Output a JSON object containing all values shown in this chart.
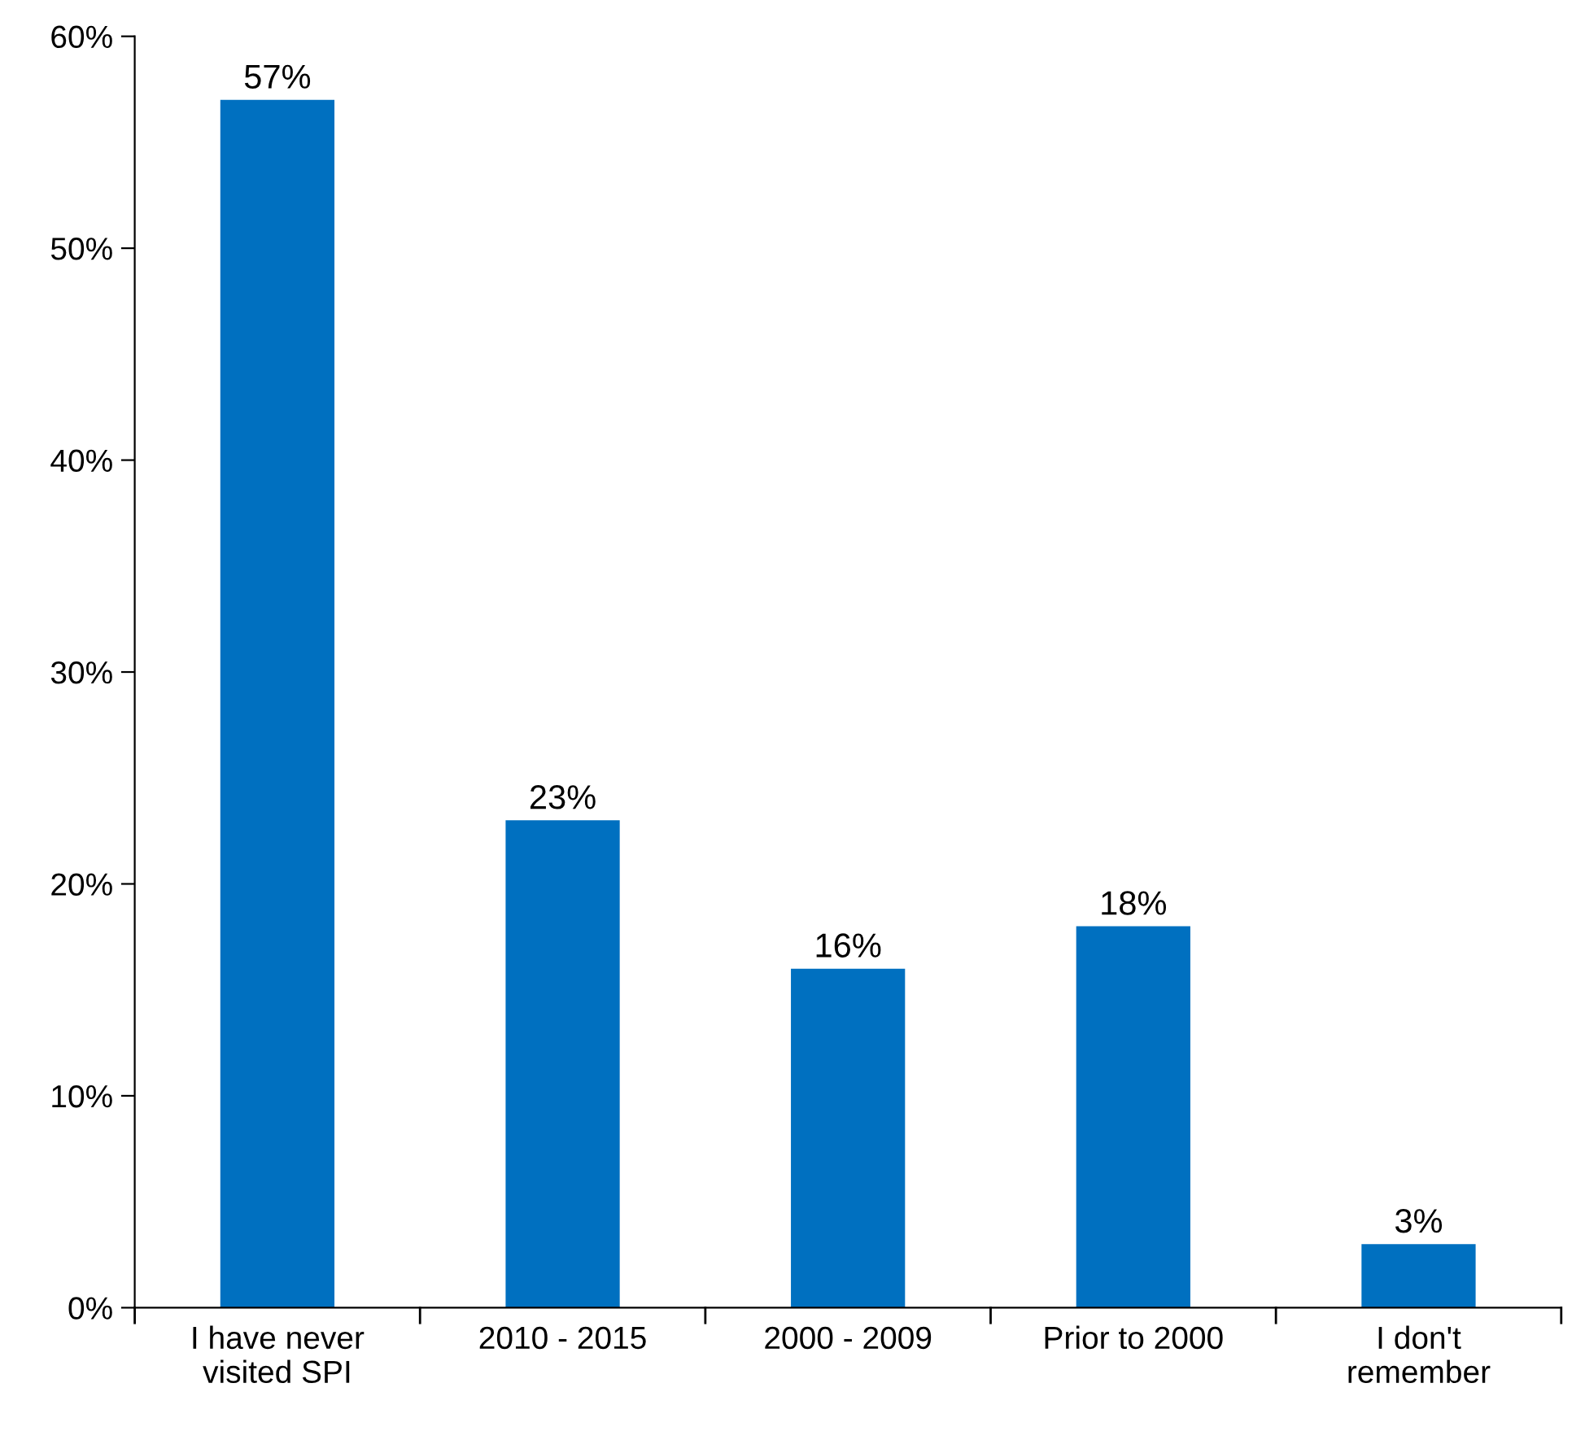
{
  "chart_data": {
    "type": "bar",
    "categories": [
      "I have never\nvisited SPI",
      "2010 - 2015",
      "2000 - 2009",
      "Prior to 2000",
      "I don't\nremember"
    ],
    "values": [
      57,
      23,
      16,
      18,
      3
    ],
    "color": "#0070c0",
    "ylim": [
      0,
      60
    ],
    "yticks": [
      {
        "value": 0,
        "label": "0%"
      },
      {
        "value": 10,
        "label": "10%"
      },
      {
        "value": 20,
        "label": "20%"
      },
      {
        "value": 30,
        "label": "30%"
      },
      {
        "value": 40,
        "label": "40%"
      },
      {
        "value": 50,
        "label": "50%"
      },
      {
        "value": 60,
        "label": "60%"
      }
    ],
    "value_labels": [
      "57%",
      "23%",
      "16%",
      "18%",
      "3%"
    ],
    "grid": false
  }
}
